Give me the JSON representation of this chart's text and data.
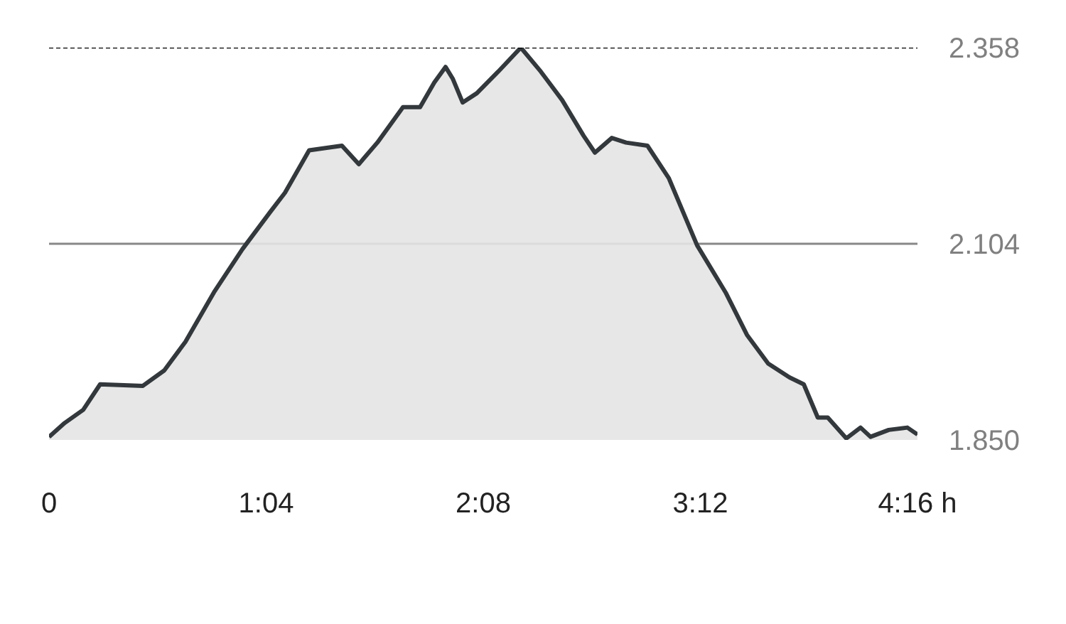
{
  "chart_data": {
    "type": "area",
    "x": [
      0,
      0.077,
      0.168,
      0.251,
      0.461,
      0.566,
      0.67,
      0.81,
      0.95,
      1.089,
      1.159,
      1.278,
      1.439,
      1.522,
      1.613,
      1.739,
      1.823,
      1.893,
      1.948,
      1.983,
      2.032,
      2.102,
      2.207,
      2.318,
      2.416,
      2.521,
      2.626,
      2.682,
      2.765,
      2.835,
      2.94,
      3.045,
      3.184,
      3.324,
      3.429,
      3.533,
      3.638,
      3.708,
      3.777,
      3.826,
      3.917,
      3.987,
      4.036,
      4.126,
      4.217,
      4.2667
    ],
    "series": [
      {
        "color": "#33383c",
        "values": [
          1.854,
          1.872,
          1.889,
          1.922,
          1.92,
          1.94,
          1.977,
          2.041,
          2.097,
          2.146,
          2.17,
          2.225,
          2.231,
          2.207,
          2.235,
          2.281,
          2.281,
          2.313,
          2.333,
          2.318,
          2.287,
          2.299,
          2.327,
          2.358,
          2.327,
          2.29,
          2.244,
          2.222,
          2.241,
          2.235,
          2.231,
          2.189,
          2.102,
          2.041,
          1.986,
          1.949,
          1.931,
          1.922,
          1.879,
          1.879,
          1.852,
          1.866,
          1.854,
          1.863,
          1.866,
          1.857
        ]
      }
    ],
    "xlim": [
      0,
      4.2667
    ],
    "ylim": [
      1.85,
      2.358
    ],
    "xticks": [
      0,
      {
        "value": 1.0667,
        "label": "1:04"
      },
      {
        "value": 2.1333,
        "label": "2:08"
      },
      {
        "value": 3.2,
        "label": "3:12"
      },
      {
        "value": 4.2667,
        "label": "4:16 h"
      }
    ],
    "yticks": [
      {
        "value": 1.85,
        "label": "1.850"
      },
      {
        "value": 2.104,
        "label": "2.104"
      },
      {
        "value": 2.358,
        "label": "2.358"
      }
    ],
    "ref_lines": [
      {
        "axis": "y",
        "value": 2.358,
        "color": "#000000",
        "line_style": "dashed"
      }
    ],
    "grid": "y"
  }
}
